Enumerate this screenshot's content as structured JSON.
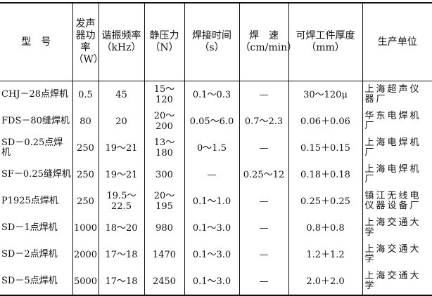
{
  "table": {
    "headers": [
      "型　号",
      "发声器功率（W）",
      "谐振频率（kHz）",
      "静压力（N）",
      "焊接时间（s）",
      "焊　速（cm/min）",
      "可焊工件厚度（mm）",
      "生产单位"
    ],
    "rows": [
      [
        "CHJ－28点焊机",
        "0.5",
        "45",
        "15～120",
        "0.1～0.3",
        "—",
        "30～120μ",
        "上海超声仪器厂"
      ],
      [
        "FDS－80缝焊机",
        "80",
        "20",
        "20～200",
        "0.05～6.0",
        "0.7～2.3",
        "0.06＋0.06",
        "华东电焊机厂"
      ],
      [
        "SD－0.25点焊机",
        "250",
        "19～21",
        "13～180",
        "0～1.5",
        "—",
        "0.15＋0.15",
        "上海电焊机厂"
      ],
      [
        "SF－0.25缝焊机",
        "250",
        "19～21",
        "300",
        "—",
        "0.25～12",
        "0.18＋0.18",
        "上海电焊机厂"
      ],
      [
        "P1925点焊机",
        "250",
        "19.5～22.5",
        "20～195",
        "0.1～1.0",
        "—",
        "0.25＋0.25",
        "镇江无线电仪器设备厂"
      ],
      [
        "SD－1点焊机",
        "1000",
        "18～20",
        "980",
        "0.1～3.0",
        "—",
        "0.8＋0.8",
        "上海交通大学"
      ],
      [
        "SD－2点焊机",
        "2000",
        "17～18",
        "1470",
        "0.1～3.0",
        "—",
        "1.2＋1.2",
        "上海交通大学"
      ],
      [
        "SD－5点焊机",
        "5000",
        "17～18",
        "2450",
        "0.1～3.0",
        "—",
        "2.0＋2.0",
        "上海交通大学"
      ]
    ]
  }
}
